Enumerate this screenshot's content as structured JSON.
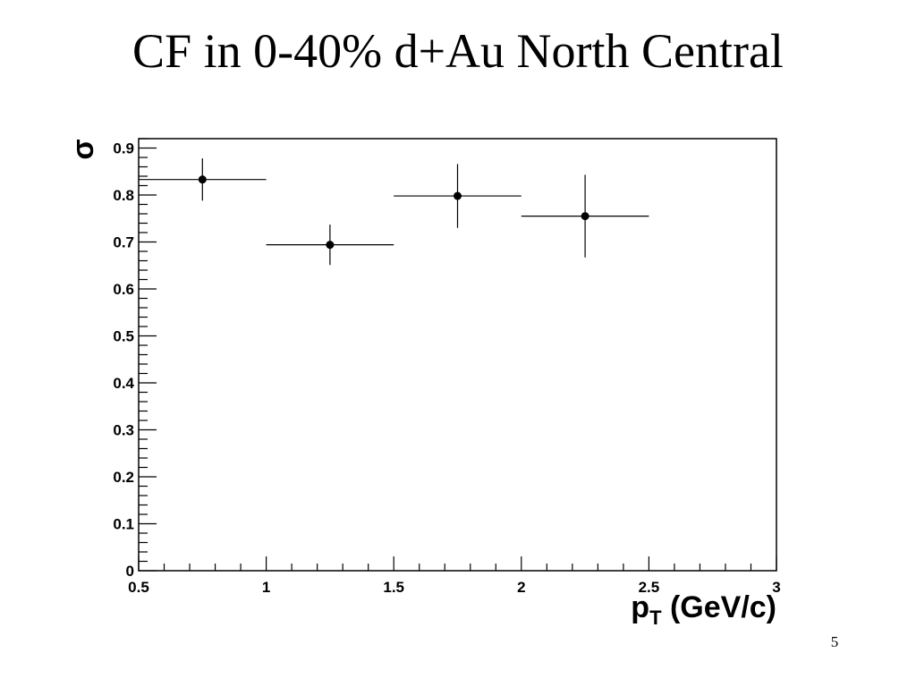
{
  "slide": {
    "title": "CF in 0-40% d+Au North Central",
    "page_number": "5"
  },
  "chart_data": {
    "type": "scatter",
    "xlabel": "p",
    "xlabel_subscript": "T",
    "xlabel_suffix": " (GeV/c)",
    "ylabel": "σ",
    "xlim": [
      0.5,
      3
    ],
    "ylim": [
      0,
      0.92
    ],
    "x_ticks": [
      0.5,
      1,
      1.5,
      2,
      2.5,
      3
    ],
    "x_tick_labels": [
      "0.5",
      "1",
      "1.5",
      "2",
      "2.5",
      "3"
    ],
    "y_ticks": [
      0,
      0.1,
      0.2,
      0.3,
      0.4,
      0.5,
      0.6,
      0.7,
      0.8,
      0.9
    ],
    "y_tick_labels": [
      "0",
      "0.1",
      "0.2",
      "0.3",
      "0.4",
      "0.5",
      "0.6",
      "0.7",
      "0.8",
      "0.9"
    ],
    "grid": false,
    "points": [
      {
        "x": 0.75,
        "y": 0.833,
        "x_err": 0.25,
        "y_err": 0.045
      },
      {
        "x": 1.25,
        "y": 0.694,
        "x_err": 0.25,
        "y_err": 0.043
      },
      {
        "x": 1.75,
        "y": 0.798,
        "x_err": 0.25,
        "y_err": 0.068
      },
      {
        "x": 2.25,
        "y": 0.755,
        "x_err": 0.25,
        "y_err": 0.088
      }
    ],
    "colors": {
      "marker": "#000000",
      "axis": "#000000"
    }
  }
}
